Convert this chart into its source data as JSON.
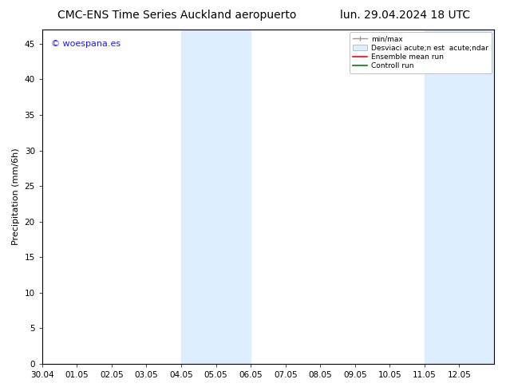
{
  "title_left": "CMC-ENS Time Series Auckland aeropuerto",
  "title_right": "lun. 29.04.2024 18 UTC",
  "ylabel": "Precipitation (mm/6h)",
  "watermark": "© woespana.es",
  "watermark_color": "#1a1aff",
  "xlim_start": 0,
  "xlim_end": 312,
  "ylim": [
    0,
    47
  ],
  "yticks": [
    0,
    5,
    10,
    15,
    20,
    25,
    30,
    35,
    40,
    45
  ],
  "xtick_labels": [
    "30.04",
    "01.05",
    "02.05",
    "03.05",
    "04.05",
    "05.05",
    "06.05",
    "07.05",
    "08.05",
    "09.05",
    "10.05",
    "11.05",
    "12.05"
  ],
  "xtick_positions": [
    0,
    24,
    48,
    72,
    96,
    120,
    144,
    168,
    192,
    216,
    240,
    264,
    288
  ],
  "shade_bands": [
    {
      "start": 96,
      "end": 144
    },
    {
      "start": 264,
      "end": 312
    }
  ],
  "shade_color": "#ddeeff",
  "background_color": "#ffffff",
  "plot_bg_color": "#ffffff",
  "legend_label_minmax": "min/max",
  "legend_label_std": "Desviaci acute;n est  acute;ndar",
  "legend_label_ensemble": "Ensemble mean run",
  "legend_label_control": "Controll run",
  "title_fontsize": 10,
  "axis_fontsize": 8,
  "tick_fontsize": 7.5,
  "watermark_fontsize": 8
}
